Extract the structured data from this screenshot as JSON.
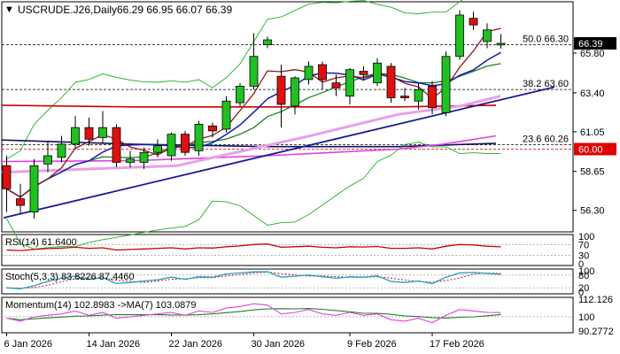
{
  "header": {
    "symbol": "USCRUDE.J26,Daily",
    "ohlc": "66.29 66.95 66.07 66.39"
  },
  "price_tag": {
    "value": "66.39",
    "bg": "#000000",
    "fg": "#ffffff"
  },
  "level_tag": {
    "value": "60.00",
    "bg": "#e00000",
    "fg": "#ffffff"
  },
  "fib_labels": [
    {
      "text": "50.0 66.30",
      "price": 66.3
    },
    {
      "text": "38.2 63.60",
      "price": 63.6
    },
    {
      "text": "23.6 60.26",
      "price": 60.26
    }
  ],
  "price_axis_ticks": [
    "65.80",
    "63.40",
    "61.05",
    "58.65",
    "56.30"
  ],
  "date_labels": [
    "6 Jan 2026",
    "14 Jan 2026",
    "22 Jan 2026",
    "30 Jan 2026",
    "9 Feb 2026",
    "17 Feb 2026"
  ],
  "indicators": {
    "rsi": {
      "label": "RSI(14) 61.6400",
      "ticks": [
        "100",
        "70",
        "30",
        "0"
      ],
      "color": "#cc0000"
    },
    "stoch": {
      "label": "Stoch(5,3,3) 83.8226 87.4460",
      "ticks": [
        "100",
        "80",
        "20",
        "0"
      ],
      "main_color": "#20a0c0",
      "signal_color": "#cc0000"
    },
    "momentum": {
      "label": "Momentum(14) 102.8983  ->MA(7) 103.0879",
      "ticks": [
        "112.126",
        "100",
        "90.2772"
      ],
      "main_color": "#e040e0",
      "ma_color": "#208020"
    }
  },
  "colors": {
    "bull_body": "#20c020",
    "bear_body": "#e01010",
    "wick": "#000000",
    "ma_fast": "#8b1a1a",
    "ma_mid": "#1a1ab0",
    "ma_slow": "#208020",
    "ma_long_red": "#cc0000",
    "ma_long_blue": "#101060",
    "ma_magenta": "#e040e0",
    "bollinger": "#20b020",
    "trendline": "#1a1a90"
  },
  "chart_data": {
    "type": "candlestick",
    "title": "USCRUDE.J26,Daily",
    "ylim": [
      55.0,
      68.9
    ],
    "candles": [
      {
        "o": 59.0,
        "h": 59.6,
        "l": 56.2,
        "c": 57.6
      },
      {
        "o": 57.0,
        "h": 57.9,
        "l": 56.1,
        "c": 56.6
      },
      {
        "o": 56.2,
        "h": 59.4,
        "l": 55.8,
        "c": 59.0
      },
      {
        "o": 59.1,
        "h": 60.5,
        "l": 58.6,
        "c": 59.6
      },
      {
        "o": 59.5,
        "h": 60.8,
        "l": 59.2,
        "c": 60.3
      },
      {
        "o": 60.3,
        "h": 62.0,
        "l": 60.0,
        "c": 61.3
      },
      {
        "o": 61.3,
        "h": 61.9,
        "l": 60.2,
        "c": 60.6
      },
      {
        "o": 60.7,
        "h": 62.3,
        "l": 60.4,
        "c": 61.3
      },
      {
        "o": 61.3,
        "h": 61.5,
        "l": 58.9,
        "c": 59.2
      },
      {
        "o": 59.2,
        "h": 59.9,
        "l": 58.9,
        "c": 59.4
      },
      {
        "o": 59.2,
        "h": 60.1,
        "l": 58.8,
        "c": 59.8
      },
      {
        "o": 59.8,
        "h": 60.6,
        "l": 59.5,
        "c": 60.2
      },
      {
        "o": 59.6,
        "h": 61.0,
        "l": 59.3,
        "c": 60.9
      },
      {
        "o": 60.9,
        "h": 61.1,
        "l": 59.6,
        "c": 59.8
      },
      {
        "o": 59.9,
        "h": 61.7,
        "l": 59.6,
        "c": 61.5
      },
      {
        "o": 61.4,
        "h": 61.6,
        "l": 60.7,
        "c": 61.1
      },
      {
        "o": 61.2,
        "h": 63.2,
        "l": 61.0,
        "c": 62.9
      },
      {
        "o": 62.8,
        "h": 64.0,
        "l": 62.6,
        "c": 63.8
      },
      {
        "o": 63.8,
        "h": 67.0,
        "l": 63.6,
        "c": 65.6
      },
      {
        "o": 66.3,
        "h": 66.8,
        "l": 66.1,
        "c": 66.6
      },
      {
        "o": 64.4,
        "h": 65.1,
        "l": 61.3,
        "c": 62.7
      },
      {
        "o": 62.6,
        "h": 64.4,
        "l": 62.1,
        "c": 64.3
      },
      {
        "o": 64.2,
        "h": 65.3,
        "l": 63.9,
        "c": 65.0
      },
      {
        "o": 65.1,
        "h": 65.3,
        "l": 63.6,
        "c": 64.2
      },
      {
        "o": 64.0,
        "h": 64.5,
        "l": 63.2,
        "c": 63.7
      },
      {
        "o": 63.2,
        "h": 64.9,
        "l": 62.7,
        "c": 64.8
      },
      {
        "o": 64.7,
        "h": 65.0,
        "l": 64.2,
        "c": 64.5
      },
      {
        "o": 64.0,
        "h": 65.5,
        "l": 63.8,
        "c": 65.2
      },
      {
        "o": 65.0,
        "h": 65.2,
        "l": 62.8,
        "c": 63.1
      },
      {
        "o": 63.2,
        "h": 63.7,
        "l": 62.9,
        "c": 63.1
      },
      {
        "o": 62.9,
        "h": 64.0,
        "l": 62.4,
        "c": 63.6
      },
      {
        "o": 63.8,
        "h": 64.1,
        "l": 62.1,
        "c": 62.5
      },
      {
        "o": 62.2,
        "h": 65.9,
        "l": 62.0,
        "c": 65.6
      },
      {
        "o": 65.6,
        "h": 68.4,
        "l": 65.4,
        "c": 68.1
      },
      {
        "o": 67.9,
        "h": 68.3,
        "l": 67.2,
        "c": 67.5
      },
      {
        "o": 66.5,
        "h": 67.6,
        "l": 66.1,
        "c": 67.2
      },
      {
        "o": 66.29,
        "h": 66.95,
        "l": 66.07,
        "c": 66.39
      }
    ]
  }
}
